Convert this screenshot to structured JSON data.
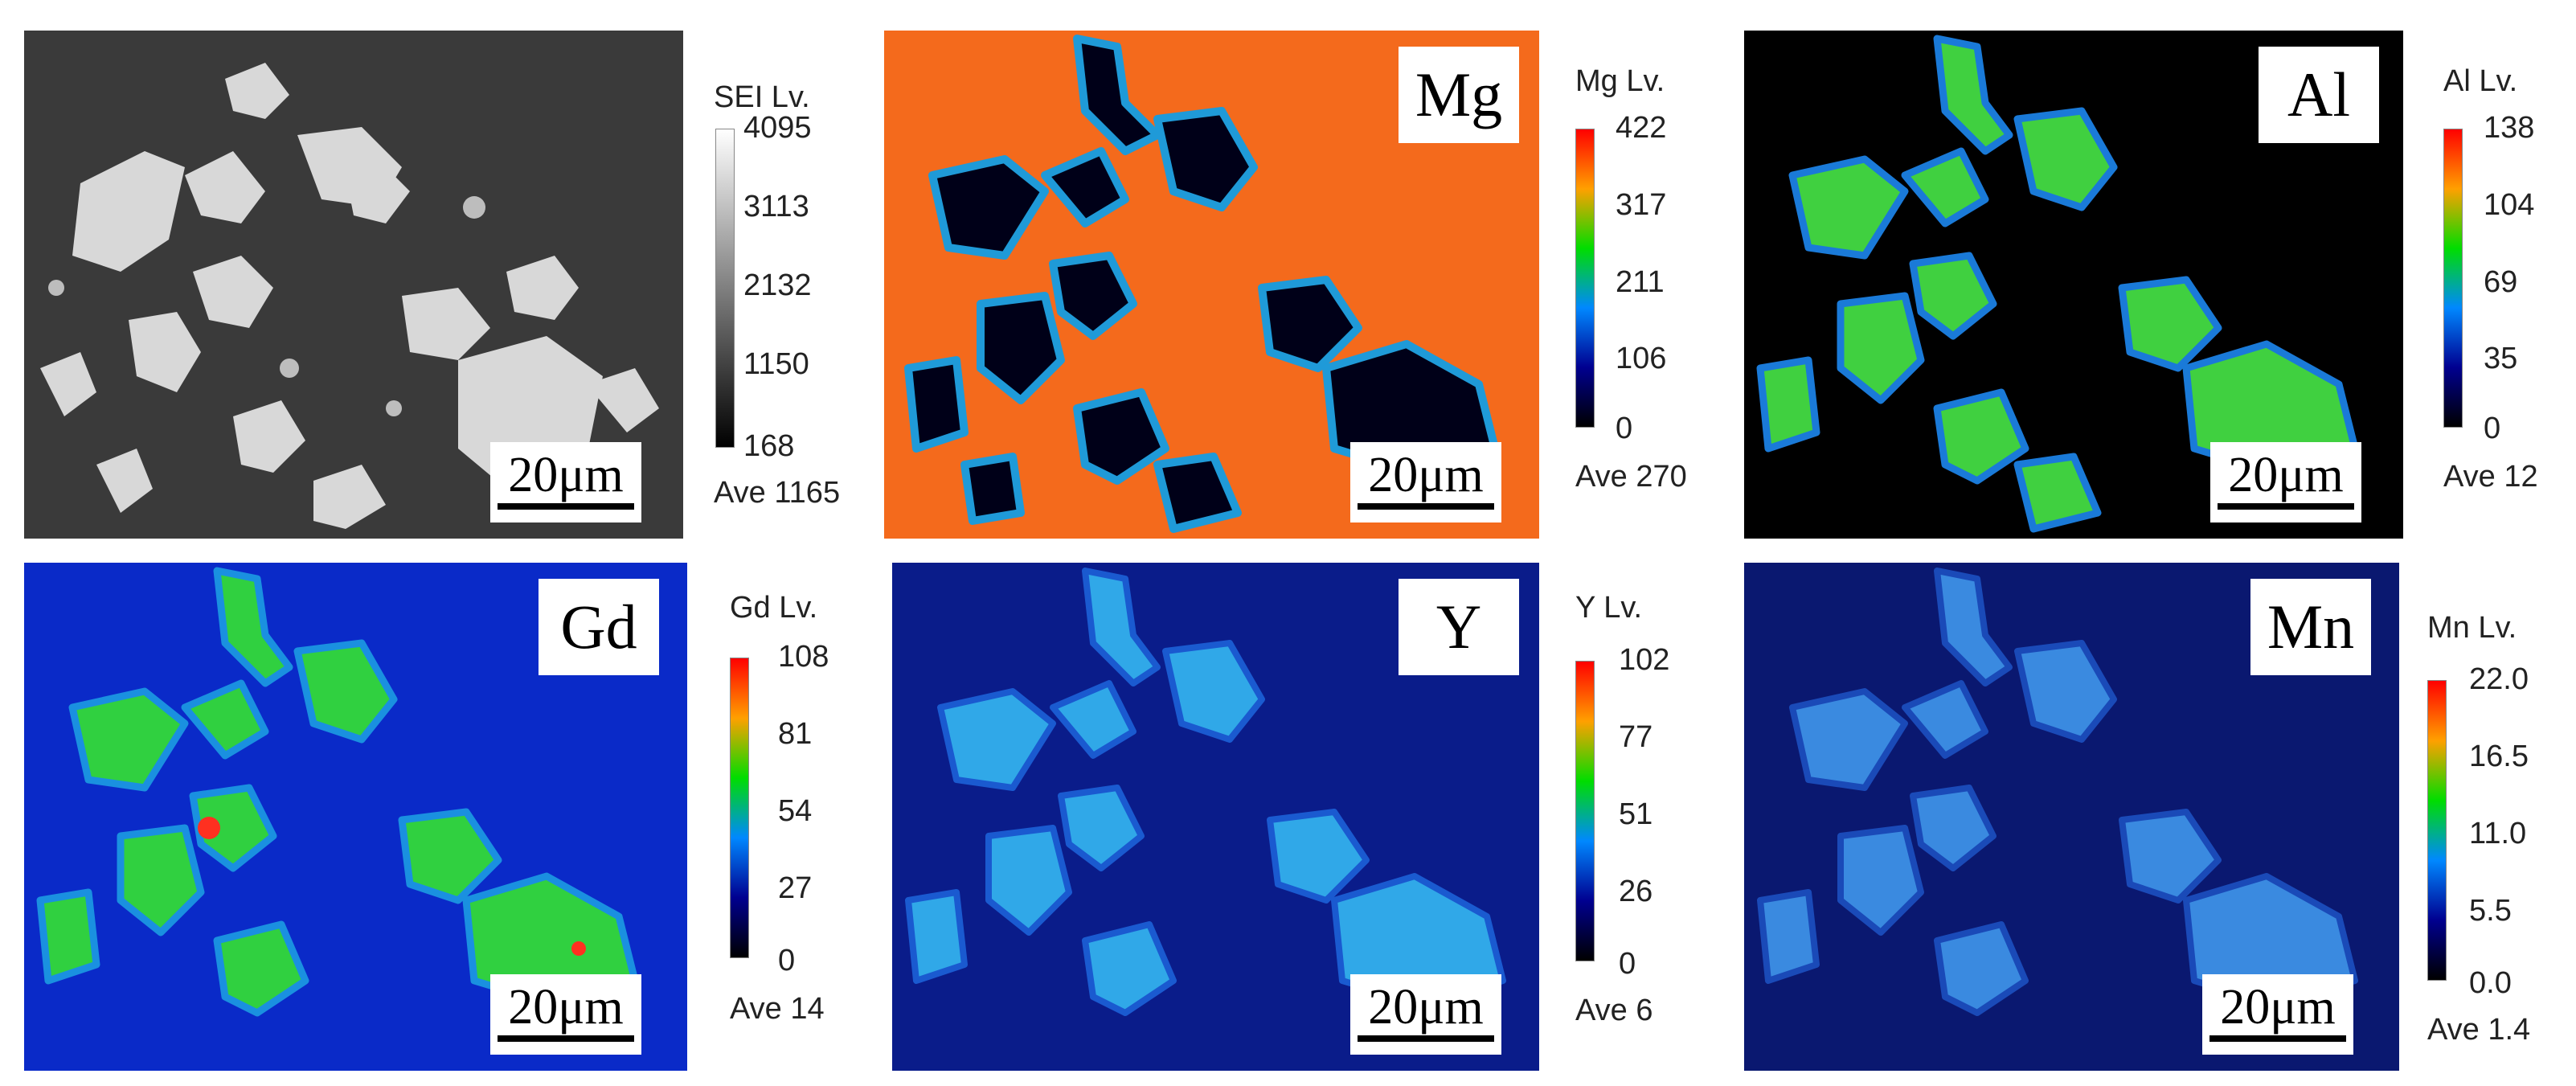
{
  "scale_label": "20μm",
  "ave_prefix": "Ave",
  "panels": [
    {
      "id": "sei",
      "element": "",
      "legend_title": "SEI  Lv.",
      "ticks": [
        "4095",
        "3113",
        "2132",
        "1150",
        "168"
      ],
      "ave": "1165",
      "colormap": [
        "#ffffff",
        "#000000"
      ],
      "background": "#3a3a3a",
      "blob": "#d6d6d6"
    },
    {
      "id": "mg",
      "element": "Mg",
      "legend_title": "Mg  Lv.",
      "ticks": [
        "422",
        "317",
        "211",
        "106",
        "0"
      ],
      "ave": "270",
      "colormap": [
        "#ff0000",
        "#ffa000",
        "#00dd00",
        "#0088ff",
        "#000090",
        "#000000"
      ],
      "background": "#f46a1c",
      "blob": "#000018"
    },
    {
      "id": "al",
      "element": "Al",
      "legend_title": "Al  Lv.",
      "ticks": [
        "138",
        "104",
        "69",
        "35",
        "0"
      ],
      "ave": "12",
      "colormap": [
        "#ff0000",
        "#ffa000",
        "#00dd00",
        "#0088ff",
        "#000090",
        "#000000"
      ],
      "background": "#000000",
      "blob": "#40d040"
    },
    {
      "id": "gd",
      "element": "Gd",
      "legend_title": "Gd  Lv.",
      "ticks": [
        "108",
        "81",
        "54",
        "27",
        "0"
      ],
      "ave": "14",
      "colormap": [
        "#ff0000",
        "#ffa000",
        "#00dd00",
        "#0088ff",
        "#000090",
        "#000000"
      ],
      "background": "#0a2ac8",
      "blob": "#30d040"
    },
    {
      "id": "y",
      "element": "Y",
      "legend_title": "Y  Lv.",
      "ticks": [
        "102",
        "77",
        "51",
        "26",
        "0"
      ],
      "ave": "6",
      "colormap": [
        "#ff0000",
        "#ffa000",
        "#00dd00",
        "#0088ff",
        "#000090",
        "#000000"
      ],
      "background": "#0a1c8a",
      "blob": "#30a8e8"
    },
    {
      "id": "mn",
      "element": "Mn",
      "legend_title": "Mn  Lv.",
      "ticks": [
        "22.0",
        "16.5",
        "11.0",
        "5.5",
        "0.0"
      ],
      "ave": "1.4",
      "colormap": [
        "#ff0000",
        "#ffa000",
        "#00dd00",
        "#0088ff",
        "#000090",
        "#000000"
      ],
      "background": "#0a1870",
      "blob": "#3a8ae0"
    }
  ]
}
